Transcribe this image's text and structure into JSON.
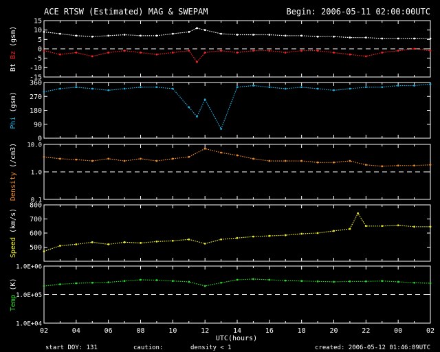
{
  "header": {
    "title": "ACE RTSW (Estimated) MAG & SWEPAM",
    "begin": "Begin: 2006-05-11 02:00:00UTC"
  },
  "footer": {
    "start_doy": "start DOY: 131",
    "caution": "caution:",
    "density_note": "density < 1",
    "created": "created: 2006-05-12 01:46:09UTC"
  },
  "colors": {
    "background": "#000000",
    "bt": "#ffffff",
    "bz": "#ff2020",
    "phi": "#20b0e0",
    "density": "#f08c28",
    "speed": "#f0f028",
    "temp": "#28d828",
    "frame": "#ffffff"
  },
  "chart_data": {
    "type": "line",
    "xlabel": "UTC(hours)",
    "x_ticks": [
      "02",
      "04",
      "06",
      "08",
      "10",
      "12",
      "14",
      "16",
      "18",
      "20",
      "22",
      "00",
      "02"
    ],
    "x_range": [
      2,
      26
    ],
    "panels": [
      {
        "id": "mag",
        "ylabel_parts": [
          {
            "text": "Bt",
            "color": "#ffffff"
          },
          {
            "text": "Bz",
            "color": "#ff2020"
          },
          {
            "text": "(gsm)",
            "color": "#ffffff"
          }
        ],
        "ylim": [
          -15,
          15
        ],
        "yticks": [
          "15",
          "10",
          "5",
          "0",
          "-5",
          "-10",
          "-15"
        ],
        "ytick_values": [
          15,
          10,
          5,
          0,
          -5,
          -10,
          -15
        ],
        "dashed_at": 0,
        "log": false,
        "series": [
          {
            "name": "Bt",
            "color": "#ffffff",
            "x": [
              2,
              3,
              4,
              5,
              6,
              7,
              8,
              9,
              10,
              11,
              11.5,
              12,
              13,
              14,
              15,
              16,
              17,
              18,
              19,
              20,
              21,
              22,
              23,
              24,
              25,
              26
            ],
            "values": [
              9,
              8,
              7,
              6.5,
              7,
              7.5,
              7,
              7,
              8,
              9,
              11,
              10,
              8,
              7.5,
              7.5,
              7.5,
              7,
              7,
              6.5,
              6.5,
              6,
              6,
              5.5,
              5.5,
              5.5,
              5.5
            ]
          },
          {
            "name": "Bz",
            "color": "#ff2020",
            "x": [
              2,
              3,
              4,
              5,
              6,
              7,
              8,
              9,
              10,
              11,
              11.5,
              12,
              13,
              14,
              15,
              16,
              17,
              18,
              19,
              20,
              21,
              22,
              23,
              24,
              25,
              26
            ],
            "values": [
              -1,
              -3,
              -2,
              -4,
              -2,
              -1,
              -2,
              -3,
              -2,
              -1,
              -7,
              -2,
              -1,
              -2,
              -1,
              -1,
              -2,
              -1,
              -1,
              -2,
              -3,
              -4,
              -2,
              -1,
              0,
              -1
            ]
          }
        ]
      },
      {
        "id": "phi",
        "ylabel_parts": [
          {
            "text": "Phi",
            "color": "#20b0e0"
          },
          {
            "text": "(gsm)",
            "color": "#ffffff"
          }
        ],
        "ylim": [
          0,
          360
        ],
        "yticks": [
          "360",
          "270",
          "180",
          "90",
          "0"
        ],
        "ytick_values": [
          360,
          270,
          180,
          90,
          0
        ],
        "dashed_at": null,
        "log": false,
        "series": [
          {
            "name": "Phi",
            "color": "#20b0e0",
            "x": [
              2,
              3,
              4,
              5,
              6,
              7,
              8,
              9,
              10,
              11,
              11.5,
              12,
              13,
              14,
              15,
              16,
              17,
              18,
              19,
              20,
              21,
              22,
              23,
              24,
              25,
              26
            ],
            "values": [
              300,
              320,
              330,
              320,
              310,
              320,
              330,
              330,
              320,
              200,
              140,
              250,
              60,
              330,
              340,
              330,
              320,
              330,
              320,
              310,
              320,
              330,
              330,
              340,
              340,
              350
            ]
          }
        ]
      },
      {
        "id": "density",
        "ylabel_parts": [
          {
            "text": "Density",
            "color": "#f08c28"
          },
          {
            "text": "(/cm3)",
            "color": "#ffffff"
          }
        ],
        "ylim": [
          0.1,
          10
        ],
        "yticks": [
          "10.0",
          "1.0",
          "0.1"
        ],
        "ytick_values": [
          10,
          1,
          0.1
        ],
        "dashed_at": 1,
        "log": true,
        "series": [
          {
            "name": "Density",
            "color": "#f08c28",
            "x": [
              2,
              3,
              4,
              5,
              6,
              7,
              8,
              9,
              10,
              11,
              12,
              13,
              14,
              15,
              16,
              17,
              18,
              19,
              20,
              21,
              22,
              23,
              24,
              25,
              26
            ],
            "values": [
              3.5,
              3,
              2.8,
              2.5,
              3,
              2.5,
              3,
              2.5,
              3,
              3.5,
              7,
              5,
              4,
              3,
              2.5,
              2.5,
              2.5,
              2.2,
              2.2,
              2.5,
              1.8,
              1.6,
              1.7,
              1.7,
              1.8
            ]
          }
        ]
      },
      {
        "id": "speed",
        "ylabel_parts": [
          {
            "text": "Speed",
            "color": "#f0f028"
          },
          {
            "text": "(km/s)",
            "color": "#ffffff"
          }
        ],
        "ylim": [
          400,
          800
        ],
        "yticks": [
          "800",
          "700",
          "600",
          "500"
        ],
        "ytick_values": [
          800,
          700,
          600,
          500
        ],
        "dashed_at": null,
        "log": false,
        "series": [
          {
            "name": "Speed",
            "color": "#f0f028",
            "x": [
              2,
              3,
              4,
              5,
              6,
              7,
              8,
              9,
              10,
              11,
              12,
              13,
              14,
              15,
              16,
              17,
              18,
              19,
              20,
              21,
              21.5,
              22,
              23,
              24,
              25,
              26
            ],
            "values": [
              470,
              510,
              520,
              535,
              520,
              535,
              530,
              540,
              545,
              555,
              525,
              555,
              565,
              575,
              580,
              585,
              595,
              600,
              615,
              630,
              740,
              650,
              650,
              655,
              645,
              645
            ]
          }
        ]
      },
      {
        "id": "temp",
        "ylabel_parts": [
          {
            "text": "Temp",
            "color": "#28d828"
          },
          {
            "text": "(K)",
            "color": "#ffffff"
          }
        ],
        "ylim": [
          10000,
          1000000
        ],
        "yticks": [
          "1.0E+06",
          "1.0E+05",
          "1.0E+04"
        ],
        "ytick_values": [
          1000000,
          100000,
          10000
        ],
        "dashed_at": 100000,
        "log": true,
        "series": [
          {
            "name": "Temp",
            "color": "#28d828",
            "x": [
              2,
              3,
              4,
              5,
              6,
              7,
              8,
              9,
              10,
              11,
              12,
              13,
              14,
              15,
              16,
              17,
              18,
              19,
              20,
              21,
              22,
              23,
              24,
              25,
              26
            ],
            "values": [
              200000,
              230000,
              250000,
              260000,
              270000,
              300000,
              330000,
              320000,
              300000,
              280000,
              200000,
              260000,
              330000,
              350000,
              330000,
              310000,
              300000,
              290000,
              280000,
              290000,
              290000,
              300000,
              280000,
              260000,
              250000
            ]
          }
        ]
      }
    ]
  }
}
